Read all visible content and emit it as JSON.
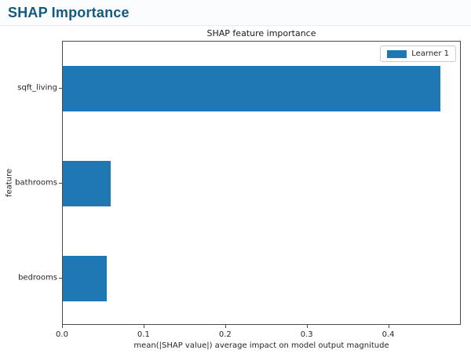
{
  "header": {
    "title": "SHAP Importance"
  },
  "chart_data": {
    "type": "bar",
    "orientation": "horizontal",
    "title": "SHAP feature importance",
    "categories": [
      "sqft_living",
      "bathrooms",
      "bedrooms"
    ],
    "values": [
      0.465,
      0.059,
      0.054
    ],
    "series": [
      {
        "name": "Learner 1",
        "values": [
          0.465,
          0.059,
          0.054
        ]
      }
    ],
    "xlabel": "mean(|SHAP value|) average impact on model output magnitude",
    "ylabel": "feature",
    "xlim": [
      0,
      0.489
    ],
    "xticks": [
      0,
      0.1,
      0.2,
      0.3,
      0.4
    ],
    "xtick_labels": [
      "0.0",
      "0.1",
      "0.2",
      "0.3",
      "0.4"
    ],
    "grid": false,
    "legend_position": "upper right",
    "bar_color": "#1f77b4",
    "header_color": "#135a7e"
  }
}
